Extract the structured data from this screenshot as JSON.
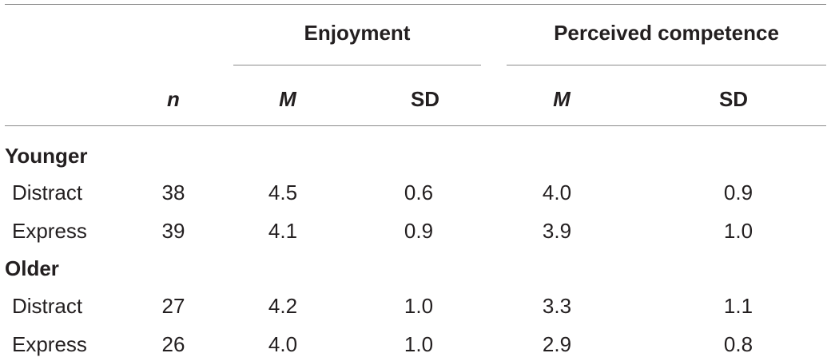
{
  "header": {
    "groups": [
      "Enjoyment",
      "Perceived competence"
    ],
    "n_label": "n",
    "mean_label": "M",
    "sd_label": "SD"
  },
  "sections": [
    {
      "label": "Younger",
      "rows": [
        {
          "condition": "Distract",
          "n": "38",
          "enj_m": "4.5",
          "enj_sd": "0.6",
          "pc_m": "4.0",
          "pc_sd": "0.9"
        },
        {
          "condition": "Express",
          "n": "39",
          "enj_m": "4.1",
          "enj_sd": "0.9",
          "pc_m": "3.9",
          "pc_sd": "1.0"
        }
      ]
    },
    {
      "label": "Older",
      "rows": [
        {
          "condition": "Distract",
          "n": "27",
          "enj_m": "4.2",
          "enj_sd": "1.0",
          "pc_m": "3.3",
          "pc_sd": "1.1"
        },
        {
          "condition": "Express",
          "n": "26",
          "enj_m": "4.0",
          "enj_sd": "1.0",
          "pc_m": "2.9",
          "pc_sd": "0.8"
        }
      ]
    }
  ]
}
